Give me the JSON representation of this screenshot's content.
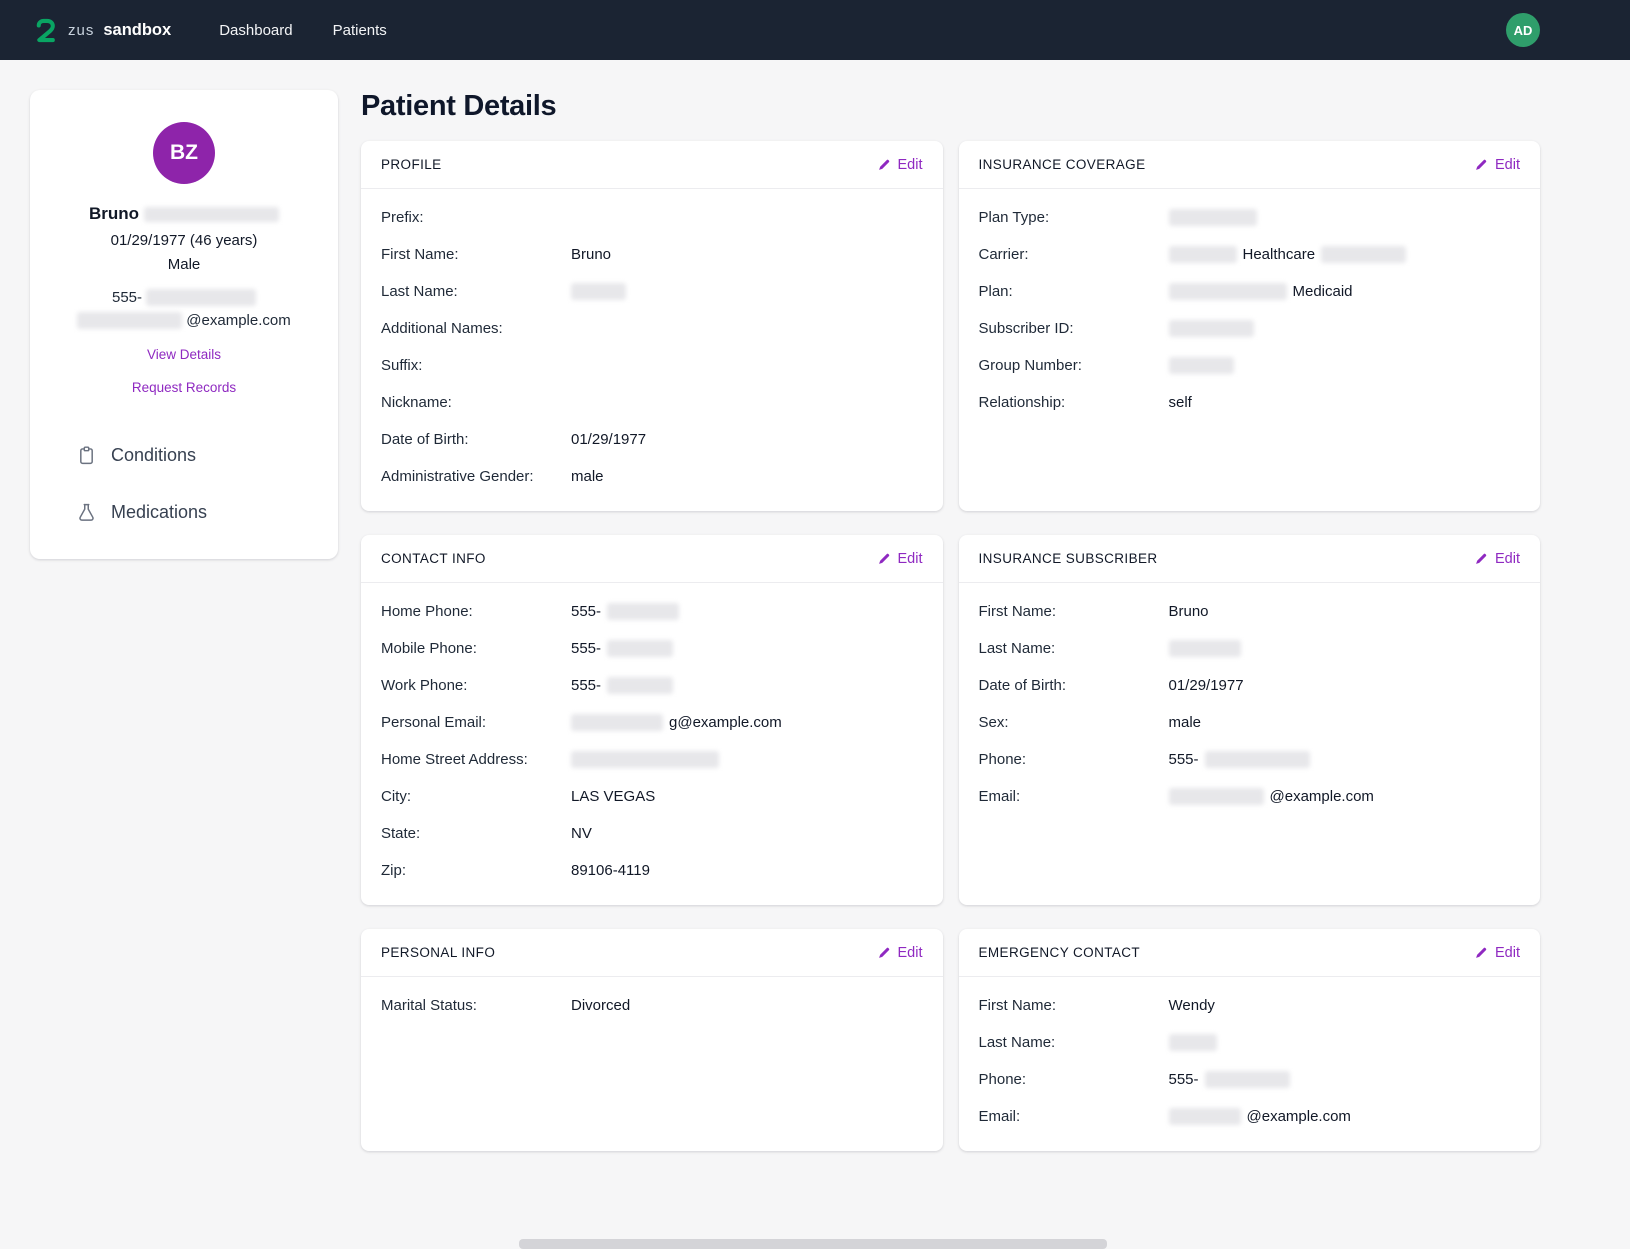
{
  "colors": {
    "navbar_bg": "#1b2433",
    "accent_purple": "#8f29c1",
    "avatar_purple": "#8e24aa",
    "navbar_avatar_green": "#2f9e6b",
    "logo_green": "#09a563",
    "page_bg": "#f6f6f7"
  },
  "navbar": {
    "logo_text": "zus",
    "app_name": "sandbox",
    "items": [
      {
        "label": "Dashboard"
      },
      {
        "label": "Patients"
      }
    ],
    "avatar_initials": "AD"
  },
  "sidebar": {
    "avatar_initials": "BZ",
    "name_parts": [
      {
        "t": "Bruno"
      },
      {
        "redact": 135
      }
    ],
    "dob": "01/29/1977 (46 years)",
    "gender": "Male",
    "phone_parts": [
      {
        "t": "555-"
      },
      {
        "redact": 110
      }
    ],
    "email_parts": [
      {
        "redact": 105
      },
      {
        "t": "@example.com"
      }
    ],
    "view_details": "View Details",
    "request_records": "Request Records",
    "nav": [
      {
        "label": "Conditions",
        "icon": "clipboard-icon"
      },
      {
        "label": "Medications",
        "icon": "flask-icon"
      }
    ]
  },
  "page_title": "Patient Details",
  "edit_label": "Edit",
  "cards": [
    {
      "id": "profile",
      "title": "PROFILE",
      "fields": [
        {
          "label": "Prefix:",
          "parts": []
        },
        {
          "label": "First Name:",
          "parts": [
            {
              "t": "Bruno"
            }
          ]
        },
        {
          "label": "Last Name:",
          "parts": [
            {
              "redact": 55
            }
          ]
        },
        {
          "label": "Additional Names:",
          "parts": []
        },
        {
          "label": "Suffix:",
          "parts": []
        },
        {
          "label": "Nickname:",
          "parts": []
        },
        {
          "label": "Date of Birth:",
          "parts": [
            {
              "t": "01/29/1977"
            }
          ]
        },
        {
          "label": "Administrative Gender:",
          "parts": [
            {
              "t": "male"
            }
          ]
        }
      ]
    },
    {
      "id": "insurance-coverage",
      "title": "INSURANCE COVERAGE",
      "fields": [
        {
          "label": "Plan Type:",
          "parts": [
            {
              "redact": 88
            }
          ]
        },
        {
          "label": "Carrier:",
          "parts": [
            {
              "redact": 68
            },
            {
              "t": "Healthcare"
            },
            {
              "redact": 85
            }
          ]
        },
        {
          "label": "Plan:",
          "parts": [
            {
              "redact": 118
            },
            {
              "t": "Medicaid"
            }
          ]
        },
        {
          "label": "Subscriber ID:",
          "parts": [
            {
              "redact": 85
            }
          ]
        },
        {
          "label": "Group Number:",
          "parts": [
            {
              "redact": 65
            }
          ]
        },
        {
          "label": "Relationship:",
          "parts": [
            {
              "t": "self"
            }
          ]
        }
      ]
    },
    {
      "id": "contact-info",
      "title": "CONTACT INFO",
      "fields": [
        {
          "label": "Home Phone:",
          "parts": [
            {
              "t": "555-"
            },
            {
              "redact": 72
            }
          ]
        },
        {
          "label": "Mobile Phone:",
          "parts": [
            {
              "t": "555-"
            },
            {
              "redact": 66
            }
          ]
        },
        {
          "label": "Work Phone:",
          "parts": [
            {
              "t": "555-"
            },
            {
              "redact": 66
            }
          ]
        },
        {
          "label": "Personal Email:",
          "parts": [
            {
              "redact": 92
            },
            {
              "t": "g@example.com"
            }
          ]
        },
        {
          "label": "Home Street Address:",
          "parts": [
            {
              "redact": 148
            }
          ]
        },
        {
          "label": "City:",
          "parts": [
            {
              "t": "LAS VEGAS"
            }
          ]
        },
        {
          "label": "State:",
          "parts": [
            {
              "t": "NV"
            }
          ]
        },
        {
          "label": "Zip:",
          "parts": [
            {
              "t": "89106-4119"
            }
          ]
        }
      ]
    },
    {
      "id": "insurance-subscriber",
      "title": "INSURANCE SUBSCRIBER",
      "fields": [
        {
          "label": "First Name:",
          "parts": [
            {
              "t": "Bruno"
            }
          ]
        },
        {
          "label": "Last Name:",
          "parts": [
            {
              "redact": 72
            }
          ]
        },
        {
          "label": "Date of Birth:",
          "parts": [
            {
              "t": "01/29/1977"
            }
          ]
        },
        {
          "label": "Sex:",
          "parts": [
            {
              "t": "male"
            }
          ]
        },
        {
          "label": "Phone:",
          "parts": [
            {
              "t": "555-"
            },
            {
              "redact": 105
            }
          ]
        },
        {
          "label": "Email:",
          "parts": [
            {
              "redact": 95
            },
            {
              "t": "@example.com"
            }
          ]
        }
      ]
    },
    {
      "id": "personal-info",
      "title": "PERSONAL INFO",
      "fields": [
        {
          "label": "Marital Status:",
          "parts": [
            {
              "t": "Divorced"
            }
          ]
        }
      ]
    },
    {
      "id": "emergency-contact",
      "title": "EMERGENCY CONTACT",
      "fields": [
        {
          "label": "First Name:",
          "parts": [
            {
              "t": "Wendy"
            }
          ]
        },
        {
          "label": "Last Name:",
          "parts": [
            {
              "redact": 48
            }
          ]
        },
        {
          "label": "Phone:",
          "parts": [
            {
              "t": "555-"
            },
            {
              "redact": 85
            }
          ]
        },
        {
          "label": "Email:",
          "parts": [
            {
              "redact": 72
            },
            {
              "t": "@example.com"
            }
          ]
        }
      ]
    }
  ]
}
